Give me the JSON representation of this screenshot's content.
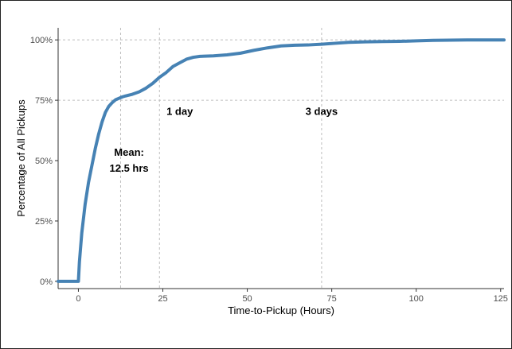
{
  "chart_data": {
    "type": "line",
    "title": "",
    "xlabel": "Time-to-Pickup (Hours)",
    "ylabel": "Percentage of All Pickups",
    "xlim": [
      -6,
      126
    ],
    "ylim": [
      -0.03,
      1.05
    ],
    "x_ticks": [
      0,
      25,
      50,
      75,
      100,
      125
    ],
    "x_tick_labels": [
      "0",
      "25",
      "50",
      "75",
      "100",
      "125"
    ],
    "y_ticks": [
      0,
      0.25,
      0.5,
      0.75,
      1.0
    ],
    "y_tick_labels": [
      "0%",
      "25%",
      "50%",
      "75%",
      "100%"
    ],
    "grid": {
      "x_major": false,
      "y_major": false
    },
    "reference_lines": {
      "horizontal": [
        0.75,
        1.0
      ],
      "vertical": [
        12.5,
        24,
        72
      ]
    },
    "annotations": [
      {
        "label": "mean",
        "lines": [
          "Mean:",
          "12.5 hrs"
        ],
        "x": 15,
        "y": 0.52
      },
      {
        "label": "one-day",
        "lines": [
          "1 day"
        ],
        "x": 30,
        "y": 0.69
      },
      {
        "label": "three-days",
        "lines": [
          "3 days"
        ],
        "x": 72,
        "y": 0.69
      }
    ],
    "series": [
      {
        "color": "#4682b4",
        "points": [
          [
            -6,
            0
          ],
          [
            0,
            0
          ],
          [
            0.3,
            0.08
          ],
          [
            1,
            0.2
          ],
          [
            2,
            0.32
          ],
          [
            3,
            0.41
          ],
          [
            4,
            0.48
          ],
          [
            5,
            0.55
          ],
          [
            6,
            0.61
          ],
          [
            7,
            0.66
          ],
          [
            8,
            0.7
          ],
          [
            9,
            0.725
          ],
          [
            10,
            0.74
          ],
          [
            11,
            0.752
          ],
          [
            12,
            0.758
          ],
          [
            13,
            0.764
          ],
          [
            14,
            0.768
          ],
          [
            16,
            0.775
          ],
          [
            18,
            0.785
          ],
          [
            20,
            0.8
          ],
          [
            22,
            0.82
          ],
          [
            24,
            0.845
          ],
          [
            26,
            0.865
          ],
          [
            28,
            0.89
          ],
          [
            30,
            0.905
          ],
          [
            32,
            0.92
          ],
          [
            34,
            0.928
          ],
          [
            36,
            0.932
          ],
          [
            40,
            0.934
          ],
          [
            44,
            0.938
          ],
          [
            48,
            0.945
          ],
          [
            52,
            0.957
          ],
          [
            56,
            0.967
          ],
          [
            60,
            0.975
          ],
          [
            64,
            0.978
          ],
          [
            68,
            0.979
          ],
          [
            72,
            0.982
          ],
          [
            76,
            0.986
          ],
          [
            80,
            0.99
          ],
          [
            85,
            0.992
          ],
          [
            90,
            0.993
          ],
          [
            95,
            0.994
          ],
          [
            100,
            0.996
          ],
          [
            105,
            0.998
          ],
          [
            110,
            0.999
          ],
          [
            115,
            1.0
          ],
          [
            120,
            1.0
          ],
          [
            126,
            1.0
          ]
        ]
      }
    ]
  }
}
